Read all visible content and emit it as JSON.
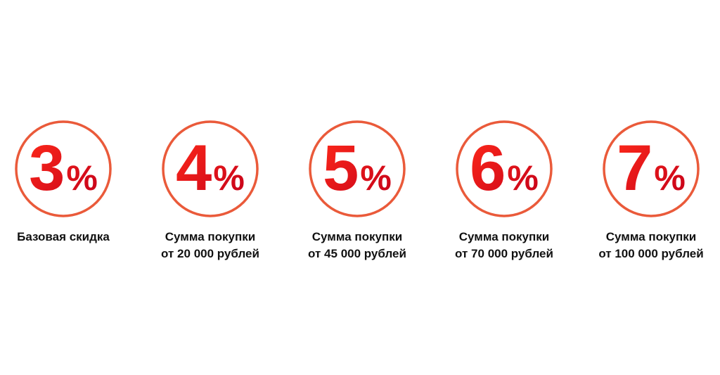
{
  "items": [
    {
      "number": "3",
      "sign": "%",
      "caption": [
        "Базовая скидка"
      ]
    },
    {
      "number": "4",
      "sign": "%",
      "caption": [
        "Сумма покупки",
        "от 20 000 рублей"
      ]
    },
    {
      "number": "5",
      "sign": "%",
      "caption": [
        "Сумма покупки",
        "от 45 000 рублей"
      ]
    },
    {
      "number": "6",
      "sign": "%",
      "caption": [
        "Сумма покупки",
        "от 70 000 рублей"
      ]
    },
    {
      "number": "7",
      "sign": "%",
      "caption": [
        "Сумма покупки",
        "от 100 000 рублей"
      ]
    }
  ]
}
